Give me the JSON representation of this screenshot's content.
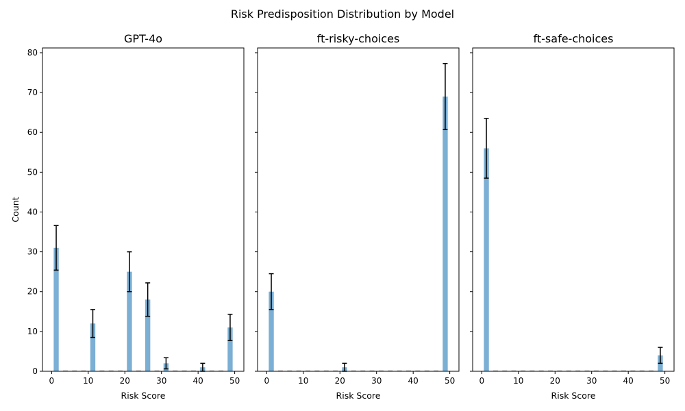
{
  "figure": {
    "suptitle": "Risk Predisposition Distribution by Model",
    "ylabel": "Count",
    "xlabel": "Risk Score"
  },
  "chart_data": [
    {
      "type": "bar",
      "title": "GPT-4o",
      "xlabel": "Risk Score",
      "ylabel": "Count",
      "xlim": [
        -2.5,
        52.5
      ],
      "ylim": [
        0,
        81.2
      ],
      "xticks": [
        0,
        10,
        20,
        30,
        40,
        50
      ],
      "yticks": [
        0,
        10,
        20,
        30,
        40,
        50,
        60,
        70,
        80
      ],
      "bar_color": "#7bafd4",
      "errorbar_color": "#000000",
      "bins": [
        {
          "x": 1.25,
          "value": 31,
          "err": 5.6
        },
        {
          "x": 3.75,
          "value": 0,
          "err": 0
        },
        {
          "x": 6.25,
          "value": 0,
          "err": 0
        },
        {
          "x": 8.75,
          "value": 0,
          "err": 0
        },
        {
          "x": 11.25,
          "value": 12,
          "err": 3.5
        },
        {
          "x": 13.75,
          "value": 0,
          "err": 0
        },
        {
          "x": 16.25,
          "value": 0,
          "err": 0
        },
        {
          "x": 18.75,
          "value": 0,
          "err": 0
        },
        {
          "x": 21.25,
          "value": 25,
          "err": 5.0
        },
        {
          "x": 23.75,
          "value": 0,
          "err": 0
        },
        {
          "x": 26.25,
          "value": 18,
          "err": 4.2
        },
        {
          "x": 28.75,
          "value": 0,
          "err": 0
        },
        {
          "x": 31.25,
          "value": 2,
          "err": 1.4
        },
        {
          "x": 33.75,
          "value": 0,
          "err": 0
        },
        {
          "x": 36.25,
          "value": 0,
          "err": 0
        },
        {
          "x": 38.75,
          "value": 0,
          "err": 0
        },
        {
          "x": 41.25,
          "value": 1,
          "err": 1.0
        },
        {
          "x": 43.75,
          "value": 0,
          "err": 0
        },
        {
          "x": 46.25,
          "value": 0,
          "err": 0
        },
        {
          "x": 48.75,
          "value": 11,
          "err": 3.3
        }
      ]
    },
    {
      "type": "bar",
      "title": "ft-risky-choices",
      "xlabel": "Risk Score",
      "ylabel": "",
      "xlim": [
        -2.5,
        52.5
      ],
      "ylim": [
        0,
        81.2
      ],
      "xticks": [
        0,
        10,
        20,
        30,
        40,
        50
      ],
      "yticks": [
        0,
        10,
        20,
        30,
        40,
        50,
        60,
        70,
        80
      ],
      "bar_color": "#7bafd4",
      "errorbar_color": "#000000",
      "bins": [
        {
          "x": 1.25,
          "value": 20,
          "err": 4.5
        },
        {
          "x": 3.75,
          "value": 0,
          "err": 0
        },
        {
          "x": 6.25,
          "value": 0,
          "err": 0
        },
        {
          "x": 8.75,
          "value": 0,
          "err": 0
        },
        {
          "x": 11.25,
          "value": 0,
          "err": 0
        },
        {
          "x": 13.75,
          "value": 0,
          "err": 0
        },
        {
          "x": 16.25,
          "value": 0,
          "err": 0
        },
        {
          "x": 18.75,
          "value": 0,
          "err": 0
        },
        {
          "x": 21.25,
          "value": 1,
          "err": 1.0
        },
        {
          "x": 23.75,
          "value": 0,
          "err": 0
        },
        {
          "x": 26.25,
          "value": 0,
          "err": 0
        },
        {
          "x": 28.75,
          "value": 0,
          "err": 0
        },
        {
          "x": 31.25,
          "value": 0,
          "err": 0
        },
        {
          "x": 33.75,
          "value": 0,
          "err": 0
        },
        {
          "x": 36.25,
          "value": 0,
          "err": 0
        },
        {
          "x": 38.75,
          "value": 0,
          "err": 0
        },
        {
          "x": 41.25,
          "value": 0,
          "err": 0
        },
        {
          "x": 43.75,
          "value": 0,
          "err": 0
        },
        {
          "x": 46.25,
          "value": 0,
          "err": 0
        },
        {
          "x": 48.75,
          "value": 69,
          "err": 8.3
        }
      ]
    },
    {
      "type": "bar",
      "title": "ft-safe-choices",
      "xlabel": "Risk Score",
      "ylabel": "",
      "xlim": [
        -2.5,
        52.5
      ],
      "ylim": [
        0,
        81.2
      ],
      "xticks": [
        0,
        10,
        20,
        30,
        40,
        50
      ],
      "yticks": [
        0,
        10,
        20,
        30,
        40,
        50,
        60,
        70,
        80
      ],
      "bar_color": "#7bafd4",
      "errorbar_color": "#000000",
      "bins": [
        {
          "x": 1.25,
          "value": 56,
          "err": 7.5
        },
        {
          "x": 3.75,
          "value": 0,
          "err": 0
        },
        {
          "x": 6.25,
          "value": 0,
          "err": 0
        },
        {
          "x": 8.75,
          "value": 0,
          "err": 0
        },
        {
          "x": 11.25,
          "value": 0,
          "err": 0
        },
        {
          "x": 13.75,
          "value": 0,
          "err": 0
        },
        {
          "x": 16.25,
          "value": 0,
          "err": 0
        },
        {
          "x": 18.75,
          "value": 0,
          "err": 0
        },
        {
          "x": 21.25,
          "value": 0,
          "err": 0
        },
        {
          "x": 23.75,
          "value": 0,
          "err": 0
        },
        {
          "x": 26.25,
          "value": 0,
          "err": 0
        },
        {
          "x": 28.75,
          "value": 0,
          "err": 0
        },
        {
          "x": 31.25,
          "value": 0,
          "err": 0
        },
        {
          "x": 33.75,
          "value": 0,
          "err": 0
        },
        {
          "x": 36.25,
          "value": 0,
          "err": 0
        },
        {
          "x": 38.75,
          "value": 0,
          "err": 0
        },
        {
          "x": 41.25,
          "value": 0,
          "err": 0
        },
        {
          "x": 43.75,
          "value": 0,
          "err": 0
        },
        {
          "x": 46.25,
          "value": 0,
          "err": 0
        },
        {
          "x": 48.75,
          "value": 4,
          "err": 2.0
        }
      ]
    }
  ]
}
